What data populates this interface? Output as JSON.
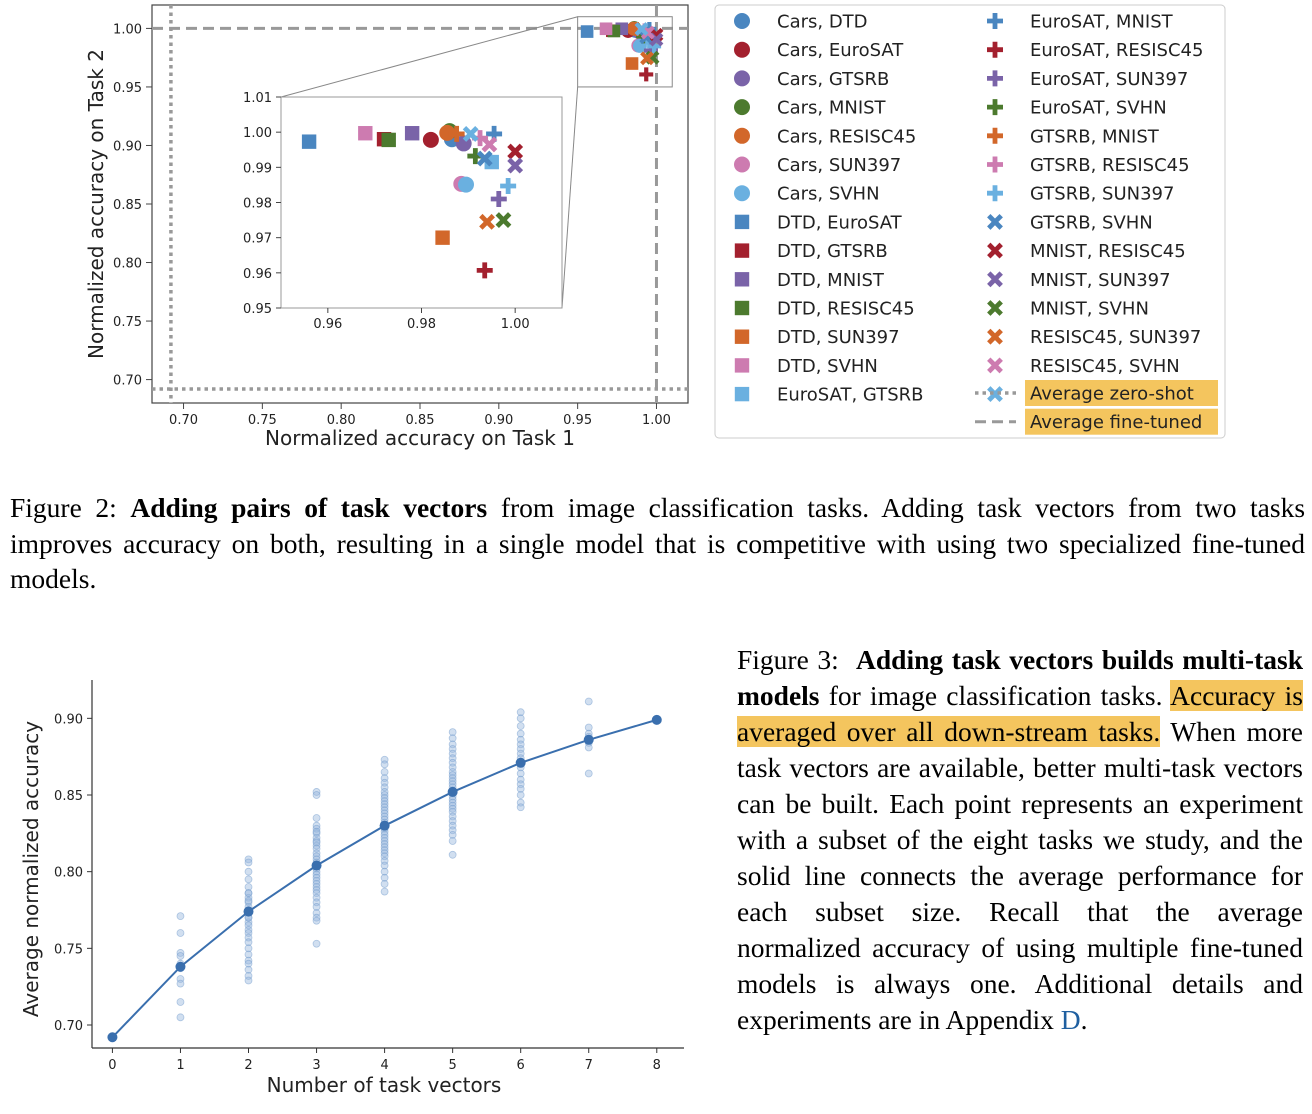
{
  "figure2": {
    "caption": {
      "label": "Figure 2:",
      "bold": "Adding pairs of task vectors",
      "text": "from image classification tasks. Adding task vectors from two tasks improves accuracy on both, resulting in a single model that is competitive with using two specialized fine-tuned models."
    },
    "legend": [
      {
        "label": "Cars, DTD",
        "marker": "circle",
        "color": "#4a86c0"
      },
      {
        "label": "Cars, EuroSAT",
        "marker": "circle",
        "color": "#a3202e"
      },
      {
        "label": "Cars, GTSRB",
        "marker": "circle",
        "color": "#7a63a8"
      },
      {
        "label": "Cars, MNIST",
        "marker": "circle",
        "color": "#4c7a2e"
      },
      {
        "label": "Cars, RESISC45",
        "marker": "circle",
        "color": "#d2672a"
      },
      {
        "label": "Cars, SUN397",
        "marker": "circle",
        "color": "#cd7bb0"
      },
      {
        "label": "Cars, SVHN",
        "marker": "circle",
        "color": "#6ab0e0"
      },
      {
        "label": "DTD, EuroSAT",
        "marker": "square",
        "color": "#4a86c0"
      },
      {
        "label": "DTD, GTSRB",
        "marker": "square",
        "color": "#a3202e"
      },
      {
        "label": "DTD, MNIST",
        "marker": "square",
        "color": "#7a63a8"
      },
      {
        "label": "DTD, RESISC45",
        "marker": "square",
        "color": "#4c7a2e"
      },
      {
        "label": "DTD, SUN397",
        "marker": "square",
        "color": "#d2672a"
      },
      {
        "label": "DTD, SVHN",
        "marker": "square",
        "color": "#cd7bb0"
      },
      {
        "label": "EuroSAT, GTSRB",
        "marker": "square",
        "color": "#6ab0e0"
      },
      {
        "label": "EuroSAT, MNIST",
        "marker": "plus",
        "color": "#4a86c0"
      },
      {
        "label": "EuroSAT, RESISC45",
        "marker": "plus",
        "color": "#a3202e"
      },
      {
        "label": "EuroSAT, SUN397",
        "marker": "plus",
        "color": "#7a63a8"
      },
      {
        "label": "EuroSAT, SVHN",
        "marker": "plus",
        "color": "#4c7a2e"
      },
      {
        "label": "GTSRB, MNIST",
        "marker": "plus",
        "color": "#d2672a"
      },
      {
        "label": "GTSRB, RESISC45",
        "marker": "plus",
        "color": "#cd7bb0"
      },
      {
        "label": "GTSRB, SUN397",
        "marker": "plus",
        "color": "#6ab0e0"
      },
      {
        "label": "GTSRB, SVHN",
        "marker": "x",
        "color": "#4a86c0"
      },
      {
        "label": "MNIST, RESISC45",
        "marker": "x",
        "color": "#a3202e"
      },
      {
        "label": "MNIST, SUN397",
        "marker": "x",
        "color": "#7a63a8"
      },
      {
        "label": "MNIST, SVHN",
        "marker": "x",
        "color": "#4c7a2e"
      },
      {
        "label": "RESISC45, SUN397",
        "marker": "x",
        "color": "#d2672a"
      },
      {
        "label": "RESISC45, SVHN",
        "marker": "x",
        "color": "#cd7bb0"
      },
      {
        "label": "SUN397, SVHN",
        "marker": "x",
        "color": "#6ab0e0"
      }
    ],
    "reference_lines": [
      {
        "label": "Average zero-shot",
        "style": "dotted",
        "highlight": "#f4c55e"
      },
      {
        "label": "Average fine-tuned",
        "style": "dashed",
        "highlight": "#f4c55e"
      }
    ]
  },
  "chart_data": [
    {
      "type": "scatter",
      "title": "",
      "xlabel": "Normalized accuracy on Task 1",
      "ylabel": "Normalized accuracy on Task 2",
      "xlim": [
        0.68,
        1.02
      ],
      "ylim": [
        0.68,
        1.02
      ],
      "xticks": [
        "0.70",
        "0.75",
        "0.80",
        "0.85",
        "0.90",
        "0.95",
        "1.00"
      ],
      "yticks": [
        "0.70",
        "0.75",
        "0.80",
        "0.85",
        "0.90",
        "0.95",
        "1.00"
      ],
      "zero_shot": {
        "x": 0.692,
        "y": 0.692
      },
      "fine_tuned": {
        "x": 1.0,
        "y": 1.0
      },
      "points": [
        {
          "series": "Cars, DTD",
          "x": 0.9865,
          "y": 0.998
        },
        {
          "series": "Cars, EuroSAT",
          "x": 0.982,
          "y": 0.9978
        },
        {
          "series": "Cars, GTSRB",
          "x": 0.989,
          "y": 0.9968
        },
        {
          "series": "Cars, MNIST",
          "x": 0.986,
          "y": 1.0003
        },
        {
          "series": "Cars, RESISC45",
          "x": 0.9855,
          "y": 0.9998
        },
        {
          "series": "Cars, SUN397",
          "x": 0.9885,
          "y": 0.9853
        },
        {
          "series": "Cars, SVHN",
          "x": 0.9895,
          "y": 0.9851
        },
        {
          "series": "DTD, EuroSAT",
          "x": 0.956,
          "y": 0.9973
        },
        {
          "series": "DTD, GTSRB",
          "x": 0.972,
          "y": 0.998
        },
        {
          "series": "DTD, MNIST",
          "x": 0.978,
          "y": 0.9997
        },
        {
          "series": "DTD, RESISC45",
          "x": 0.973,
          "y": 0.9978
        },
        {
          "series": "DTD, SUN397",
          "x": 0.9845,
          "y": 0.97
        },
        {
          "series": "DTD, SVHN",
          "x": 0.968,
          "y": 0.9997
        },
        {
          "series": "EuroSAT, GTSRB",
          "x": 0.995,
          "y": 0.9915
        },
        {
          "series": "EuroSAT, MNIST",
          "x": 0.9955,
          "y": 0.9995
        },
        {
          "series": "EuroSAT, RESISC45",
          "x": 0.9935,
          "y": 0.9607
        },
        {
          "series": "EuroSAT, SUN397",
          "x": 0.9965,
          "y": 0.981
        },
        {
          "series": "EuroSAT, SVHN",
          "x": 0.9915,
          "y": 0.9932
        },
        {
          "series": "GTSRB, MNIST",
          "x": 0.9875,
          "y": 0.9995
        },
        {
          "series": "GTSRB, RESISC45",
          "x": 0.9925,
          "y": 0.9983
        },
        {
          "series": "GTSRB, SUN397",
          "x": 0.9985,
          "y": 0.9847
        },
        {
          "series": "GTSRB, SVHN",
          "x": 0.9935,
          "y": 0.9925
        },
        {
          "series": "MNIST, RESISC45",
          "x": 1.0,
          "y": 0.9945
        },
        {
          "series": "MNIST, SUN397",
          "x": 1.0,
          "y": 0.9905
        },
        {
          "series": "MNIST, SVHN",
          "x": 0.9975,
          "y": 0.975
        },
        {
          "series": "RESISC45, SUN397",
          "x": 0.994,
          "y": 0.9745
        },
        {
          "series": "RESISC45, SVHN",
          "x": 0.9945,
          "y": 0.9965
        },
        {
          "series": "SUN397, SVHN",
          "x": 0.9905,
          "y": 0.9995
        }
      ],
      "inset": {
        "xlim": [
          0.95,
          1.01
        ],
        "ylim": [
          0.95,
          1.01
        ],
        "xticks": [
          "0.96",
          "0.98",
          "1.00"
        ],
        "yticks": [
          "0.95",
          "0.96",
          "0.97",
          "0.98",
          "0.99",
          "1.00",
          "1.01"
        ]
      }
    },
    {
      "type": "line",
      "title": "",
      "xlabel": "Number of task vectors",
      "ylabel": "Average normalized accuracy",
      "xlim": [
        -0.3,
        8.4
      ],
      "ylim": [
        0.685,
        0.925
      ],
      "xticks": [
        "0",
        "1",
        "2",
        "3",
        "4",
        "5",
        "6",
        "7",
        "8"
      ],
      "yticks": [
        "0.70",
        "0.75",
        "0.80",
        "0.85",
        "0.90"
      ],
      "mean_line": {
        "x": [
          0,
          1,
          2,
          3,
          4,
          5,
          6,
          7,
          8
        ],
        "y": [
          0.692,
          0.738,
          0.774,
          0.804,
          0.83,
          0.852,
          0.871,
          0.886,
          0.899
        ]
      },
      "experiments": [
        {
          "x": 1,
          "y": [
            0.771,
            0.76,
            0.747,
            0.745,
            0.74,
            0.737,
            0.73,
            0.727,
            0.715,
            0.705
          ]
        },
        {
          "x": 2,
          "y": [
            0.808,
            0.806,
            0.8,
            0.795,
            0.79,
            0.786,
            0.783,
            0.78,
            0.777,
            0.775,
            0.773,
            0.77,
            0.767,
            0.765,
            0.762,
            0.76,
            0.757,
            0.754,
            0.75,
            0.746,
            0.742,
            0.74,
            0.736,
            0.732,
            0.729,
            0.786,
            0.781,
            0.77
          ]
        },
        {
          "x": 3,
          "y": [
            0.852,
            0.85,
            0.835,
            0.83,
            0.828,
            0.825,
            0.822,
            0.82,
            0.817,
            0.815,
            0.812,
            0.81,
            0.808,
            0.806,
            0.804,
            0.802,
            0.8,
            0.798,
            0.796,
            0.794,
            0.792,
            0.79,
            0.788,
            0.786,
            0.783,
            0.78,
            0.777,
            0.773,
            0.77,
            0.768,
            0.753,
            0.826,
            0.819
          ]
        },
        {
          "x": 4,
          "y": [
            0.873,
            0.87,
            0.865,
            0.861,
            0.858,
            0.855,
            0.852,
            0.85,
            0.848,
            0.846,
            0.844,
            0.842,
            0.84,
            0.838,
            0.836,
            0.834,
            0.832,
            0.83,
            0.828,
            0.826,
            0.824,
            0.822,
            0.82,
            0.818,
            0.816,
            0.814,
            0.812,
            0.81,
            0.807,
            0.804,
            0.8,
            0.796,
            0.792,
            0.787
          ]
        },
        {
          "x": 5,
          "y": [
            0.891,
            0.887,
            0.883,
            0.88,
            0.877,
            0.874,
            0.871,
            0.868,
            0.865,
            0.863,
            0.861,
            0.859,
            0.857,
            0.855,
            0.853,
            0.851,
            0.849,
            0.847,
            0.845,
            0.843,
            0.841,
            0.839,
            0.836,
            0.833,
            0.83,
            0.827,
            0.824,
            0.82,
            0.811
          ]
        },
        {
          "x": 6,
          "y": [
            0.904,
            0.9,
            0.895,
            0.89,
            0.886,
            0.883,
            0.88,
            0.877,
            0.874,
            0.871,
            0.868,
            0.864,
            0.86,
            0.857,
            0.854,
            0.85,
            0.845,
            0.842
          ]
        },
        {
          "x": 7,
          "y": [
            0.911,
            0.894,
            0.89,
            0.888,
            0.886,
            0.884,
            0.881,
            0.864
          ]
        },
        {
          "x": 8,
          "y": [
            0.899
          ]
        }
      ]
    }
  ],
  "figure3": {
    "caption": {
      "label": "Figure 3:",
      "bold": "Adding task vectors builds multi-task models",
      "text1": "for image classification tasks.",
      "highlight": "Accuracy is averaged over all down-stream tasks.",
      "text2": "When more task vectors are available, better multi-task vectors can be built. Each point represents an experiment with a subset of the eight tasks we study, and the solid line connects the average performance for each subset size. Recall that the average normalized accuracy of using multiple fine-tuned models is always one. Additional details and experiments are in Appendix",
      "link": "D",
      "end": "."
    }
  }
}
